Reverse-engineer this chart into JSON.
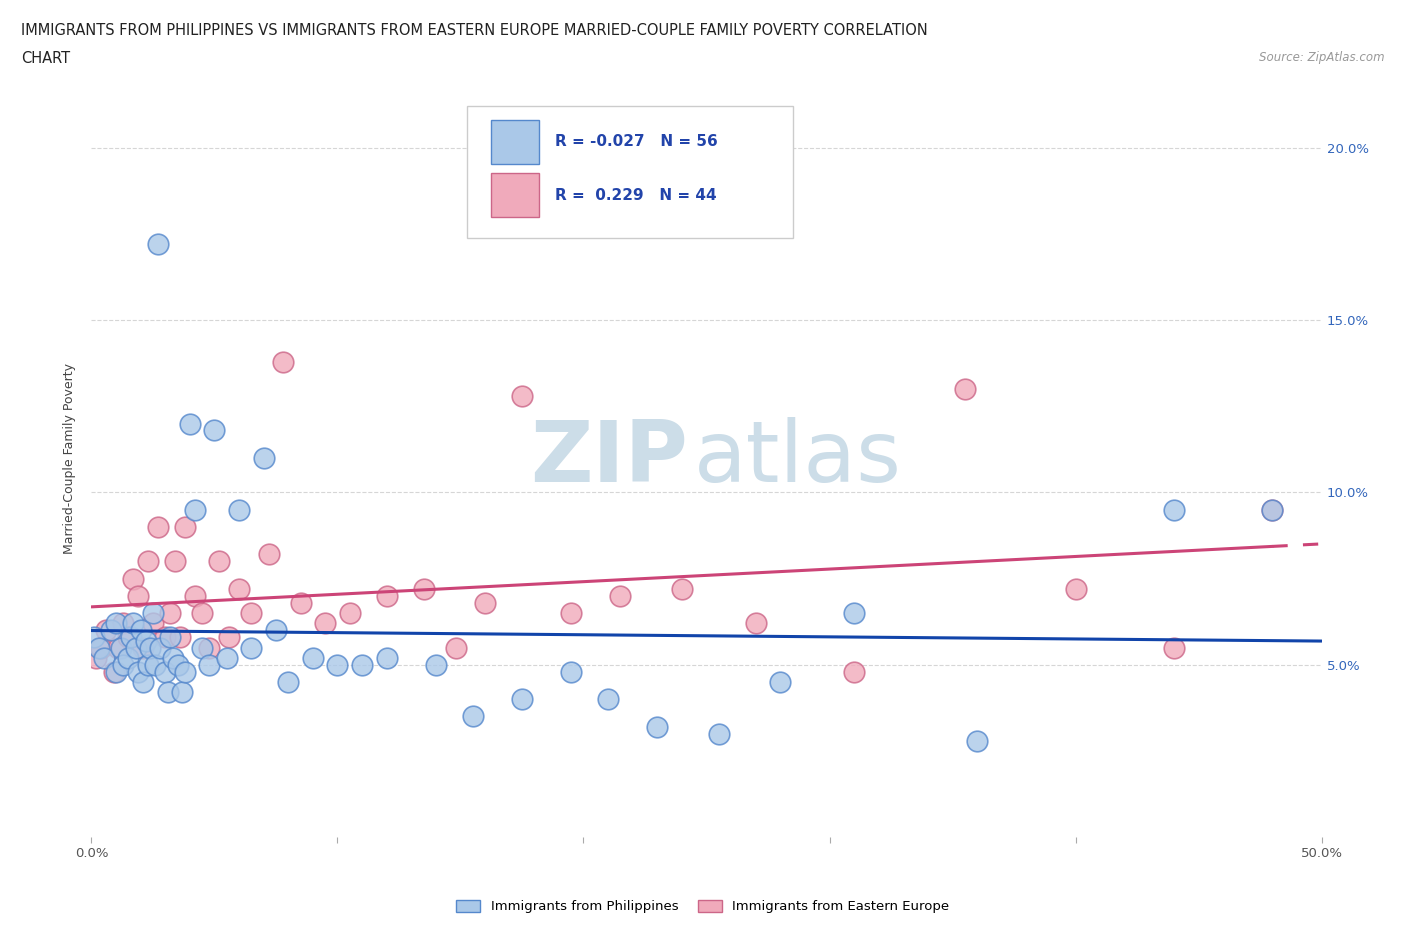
{
  "title_line1": "IMMIGRANTS FROM PHILIPPINES VS IMMIGRANTS FROM EASTERN EUROPE MARRIED-COUPLE FAMILY POVERTY CORRELATION",
  "title_line2": "CHART",
  "source_text": "Source: ZipAtlas.com",
  "ylabel": "Married-Couple Family Poverty",
  "xlim": [
    0.0,
    0.5
  ],
  "ylim": [
    0.0,
    0.22
  ],
  "xticks": [
    0.0,
    0.1,
    0.2,
    0.3,
    0.4,
    0.5
  ],
  "xticklabels": [
    "0.0%",
    "",
    "",
    "",
    "",
    "50.0%"
  ],
  "yticks": [
    0.05,
    0.1,
    0.15,
    0.2
  ],
  "yticklabels": [
    "5.0%",
    "10.0%",
    "15.0%",
    "20.0%"
  ],
  "philippines_color": "#aac8e8",
  "eastern_europe_color": "#f0aabb",
  "philippines_edge_color": "#5588cc",
  "eastern_europe_edge_color": "#cc6688",
  "philippines_line_color": "#1144aa",
  "eastern_europe_line_color": "#cc4477",
  "R_philippines": -0.027,
  "N_philippines": 56,
  "R_eastern_europe": 0.229,
  "N_eastern_europe": 44,
  "legend_R_color": "#2244aa",
  "watermark_color": "#ccdde8",
  "grid_color": "#cccccc",
  "philippines_x": [
    0.001,
    0.003,
    0.005,
    0.008,
    0.01,
    0.01,
    0.012,
    0.013,
    0.015,
    0.016,
    0.017,
    0.018,
    0.019,
    0.02,
    0.021,
    0.022,
    0.023,
    0.024,
    0.025,
    0.026,
    0.027,
    0.028,
    0.03,
    0.031,
    0.032,
    0.033,
    0.035,
    0.037,
    0.038,
    0.04,
    0.042,
    0.045,
    0.048,
    0.05,
    0.055,
    0.06,
    0.065,
    0.07,
    0.075,
    0.08,
    0.09,
    0.1,
    0.11,
    0.12,
    0.14,
    0.155,
    0.175,
    0.195,
    0.21,
    0.23,
    0.255,
    0.28,
    0.31,
    0.36,
    0.44,
    0.48
  ],
  "philippines_y": [
    0.058,
    0.055,
    0.052,
    0.06,
    0.048,
    0.062,
    0.055,
    0.05,
    0.052,
    0.058,
    0.062,
    0.055,
    0.048,
    0.06,
    0.045,
    0.057,
    0.05,
    0.055,
    0.065,
    0.05,
    0.172,
    0.055,
    0.048,
    0.042,
    0.058,
    0.052,
    0.05,
    0.042,
    0.048,
    0.12,
    0.095,
    0.055,
    0.05,
    0.118,
    0.052,
    0.095,
    0.055,
    0.11,
    0.06,
    0.045,
    0.052,
    0.05,
    0.05,
    0.052,
    0.05,
    0.035,
    0.04,
    0.048,
    0.04,
    0.032,
    0.03,
    0.045,
    0.065,
    0.028,
    0.095,
    0.095
  ],
  "eastern_europe_x": [
    0.002,
    0.004,
    0.006,
    0.009,
    0.011,
    0.013,
    0.015,
    0.017,
    0.019,
    0.021,
    0.023,
    0.025,
    0.027,
    0.03,
    0.032,
    0.034,
    0.036,
    0.038,
    0.042,
    0.045,
    0.048,
    0.052,
    0.056,
    0.06,
    0.065,
    0.072,
    0.078,
    0.085,
    0.095,
    0.105,
    0.12,
    0.135,
    0.148,
    0.16,
    0.175,
    0.195,
    0.215,
    0.24,
    0.27,
    0.31,
    0.355,
    0.4,
    0.44,
    0.48
  ],
  "eastern_europe_y": [
    0.052,
    0.055,
    0.06,
    0.048,
    0.055,
    0.062,
    0.058,
    0.075,
    0.07,
    0.055,
    0.08,
    0.062,
    0.09,
    0.058,
    0.065,
    0.08,
    0.058,
    0.09,
    0.07,
    0.065,
    0.055,
    0.08,
    0.058,
    0.072,
    0.065,
    0.082,
    0.138,
    0.068,
    0.062,
    0.065,
    0.07,
    0.072,
    0.055,
    0.068,
    0.128,
    0.065,
    0.07,
    0.072,
    0.062,
    0.048,
    0.13,
    0.072,
    0.055,
    0.095
  ]
}
